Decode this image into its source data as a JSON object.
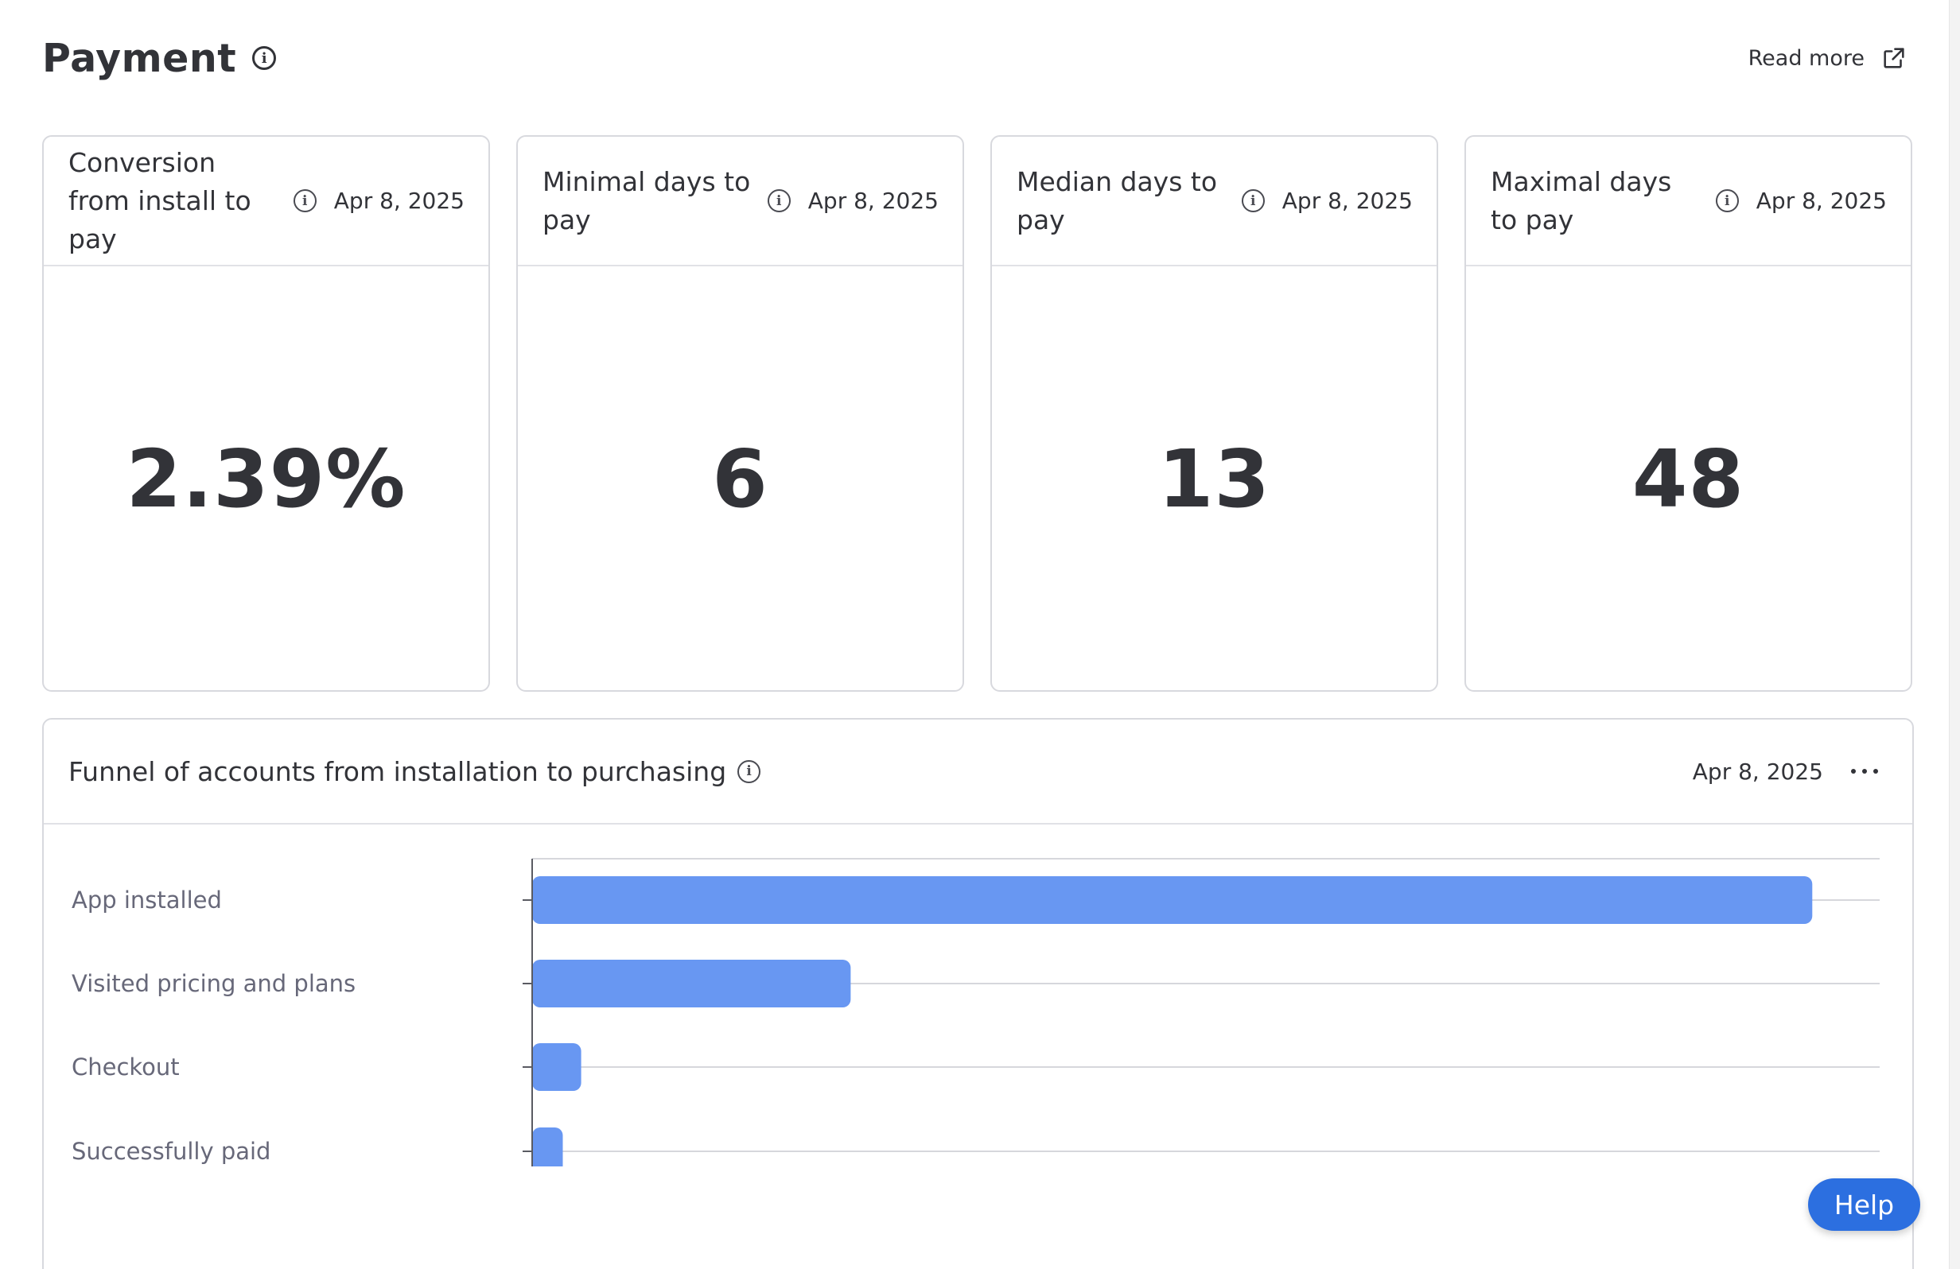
{
  "header": {
    "title": "Payment",
    "read_more_label": "Read more"
  },
  "kpis": [
    {
      "title": "Conversion from install to pay",
      "date": "Apr 8, 2025",
      "value": "2.39%"
    },
    {
      "title": "Minimal days to pay",
      "date": "Apr 8, 2025",
      "value": "6"
    },
    {
      "title": "Median days to pay",
      "date": "Apr 8, 2025",
      "value": "13"
    },
    {
      "title": "Maximal days to pay",
      "date": "Apr 8, 2025",
      "value": "48"
    }
  ],
  "funnel": {
    "title": "Funnel of accounts from installation to purchasing",
    "date": "Apr 8, 2025"
  },
  "chart_data": {
    "type": "bar",
    "orientation": "horizontal",
    "categories": [
      "App installed",
      "Visited pricing and plans",
      "Checkout",
      "Successfully paid"
    ],
    "values": [
      209,
      52,
      8,
      5
    ],
    "xticks": [
      0,
      55,
      110,
      165
    ],
    "xlim": [
      0,
      220
    ],
    "grid": true,
    "bar_color": "#6897f2"
  },
  "help_label": "Help",
  "colors": {
    "text": "#323338",
    "border": "#d8d9de",
    "accent": "#2c6fe0",
    "bar": "#6897f2"
  }
}
